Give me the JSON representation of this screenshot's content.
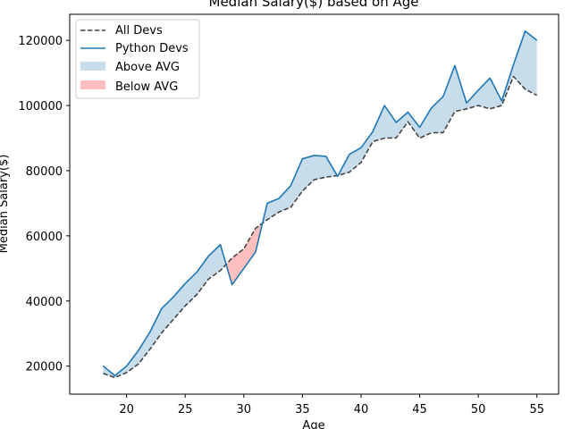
{
  "chart_data": {
    "type": "line",
    "title": "Median Salary($) based on Age",
    "xlabel": "Age",
    "ylabel": "Median Salary($)",
    "xlim": [
      15.15,
      56.85
    ],
    "ylim": [
      11400,
      128000
    ],
    "x_ticks": [
      20,
      25,
      30,
      35,
      40,
      45,
      50,
      55
    ],
    "y_ticks": [
      20000,
      40000,
      60000,
      80000,
      100000,
      120000
    ],
    "x_tick_labels": [
      "20",
      "25",
      "30",
      "35",
      "40",
      "45",
      "50",
      "55"
    ],
    "y_tick_labels": [
      "20000",
      "40000",
      "60000",
      "80000",
      "100000",
      "120000"
    ],
    "grid": false,
    "legend_position": "upper-left",
    "x": [
      18,
      19,
      20,
      21,
      22,
      23,
      24,
      25,
      26,
      27,
      28,
      29,
      30,
      31,
      32,
      33,
      34,
      35,
      36,
      37,
      38,
      39,
      40,
      41,
      42,
      43,
      44,
      45,
      46,
      47,
      48,
      49,
      50,
      51,
      52,
      53,
      54,
      55
    ],
    "series": [
      {
        "name": "All Devs",
        "style": "dashed",
        "color": "#444444",
        "values": [
          17784,
          16500,
          18012,
          20628,
          25206,
          30252,
          34368,
          38496,
          42000,
          46752,
          49320,
          53200,
          56000,
          62316,
          64928,
          67317,
          68748,
          73752,
          77232,
          78000,
          78508,
          79536,
          82488,
          88935,
          90000,
          90056,
          95000,
          90000,
          91633,
          91660,
          98150,
          98964,
          100000,
          98988,
          100000,
          108923,
          105000,
          103117
        ]
      },
      {
        "name": "Python Devs",
        "style": "solid",
        "color": "#1f77b4",
        "values": [
          20046,
          17100,
          20000,
          24744,
          30500,
          37732,
          41247,
          45372,
          48876,
          53850,
          57287,
          45000,
          50000,
          55000,
          70000,
          71496,
          75370,
          83640,
          84666,
          84392,
          78254,
          85000,
          87038,
          91991,
          100000,
          94796,
          97962,
          93302,
          99240,
          102736,
          112285,
          100771,
          104708,
          108423,
          101407,
          112542,
          122870,
          120000
        ]
      }
    ],
    "fills": [
      {
        "name": "Above AVG",
        "color": "#1f77b4",
        "opacity": 0.25
      },
      {
        "name": "Below AVG",
        "color": "#ff0000",
        "opacity": 0.25
      }
    ]
  }
}
